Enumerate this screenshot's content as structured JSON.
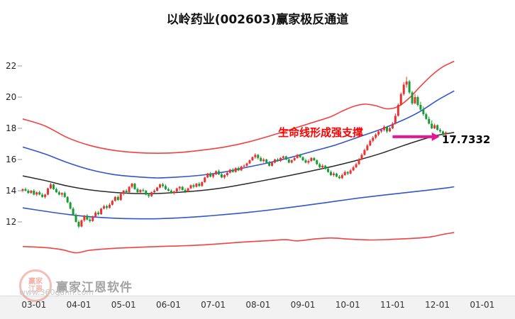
{
  "title": "以岭药业(002603)赢家极反通道",
  "watermark": {
    "brand": "赢家江恩软件",
    "url": "www.360gann.com",
    "seal_line1": "赢家",
    "seal_line2": "江恩"
  },
  "chart_data": {
    "type": "candlestick",
    "title": "以岭药业(002603)赢家极反通道",
    "ylim": [
      10,
      23
    ],
    "grid": false,
    "y_ticks": [
      22,
      20,
      18,
      16,
      14,
      12
    ],
    "x_ticks": [
      "03-01",
      "04-01",
      "05-01",
      "06-01",
      "07-01",
      "08-01",
      "09-01",
      "10-01",
      "11-01",
      "12-01",
      "01-01"
    ],
    "x_tick_first_index": 4,
    "x_tick_step": 16,
    "colors": {
      "up": "#e83232",
      "down": "#169c33",
      "axis_text": "#222222",
      "x_text": "#333333"
    },
    "annotation": {
      "text": "生命线形成强支撑",
      "text_color": "#ff0000",
      "price_label": "17.7332",
      "price_value": 17.7332,
      "arrow_color": "#e61696",
      "arrow_from_index": 132,
      "arrow_to_index": 146
    },
    "candles": [
      [
        14.0,
        14.15,
        13.9,
        14.1
      ],
      [
        14.1,
        14.2,
        13.95,
        14.0
      ],
      [
        14.0,
        14.1,
        13.8,
        13.85
      ],
      [
        13.85,
        14.05,
        13.8,
        14.0
      ],
      [
        14.0,
        14.1,
        13.7,
        13.75
      ],
      [
        13.75,
        13.95,
        13.65,
        13.9
      ],
      [
        13.9,
        14.0,
        13.7,
        13.75
      ],
      [
        13.75,
        13.85,
        13.55,
        13.6
      ],
      [
        13.6,
        13.8,
        13.5,
        13.75
      ],
      [
        13.75,
        14.2,
        13.7,
        14.15
      ],
      [
        14.15,
        14.5,
        14.1,
        14.4
      ],
      [
        14.4,
        14.45,
        14.05,
        14.1
      ],
      [
        14.1,
        14.2,
        13.85,
        13.9
      ],
      [
        13.9,
        14.0,
        13.7,
        13.75
      ],
      [
        13.75,
        13.9,
        13.6,
        13.85
      ],
      [
        13.85,
        13.95,
        13.55,
        13.6
      ],
      [
        13.6,
        13.65,
        13.2,
        13.25
      ],
      [
        13.25,
        13.3,
        12.8,
        12.85
      ],
      [
        12.85,
        12.95,
        12.4,
        12.45
      ],
      [
        12.45,
        12.55,
        11.95,
        12.0
      ],
      [
        12.0,
        12.1,
        11.6,
        11.7
      ],
      [
        11.7,
        12.15,
        11.65,
        12.1
      ],
      [
        12.1,
        12.45,
        12.0,
        12.4
      ],
      [
        12.4,
        12.5,
        12.1,
        12.15
      ],
      [
        12.15,
        12.3,
        11.95,
        12.05
      ],
      [
        12.05,
        12.4,
        12.0,
        12.35
      ],
      [
        12.35,
        12.7,
        12.3,
        12.6
      ],
      [
        12.6,
        12.7,
        12.4,
        12.5
      ],
      [
        12.5,
        12.9,
        12.45,
        12.85
      ],
      [
        12.85,
        13.1,
        12.8,
        13.0
      ],
      [
        13.0,
        13.1,
        12.8,
        12.9
      ],
      [
        12.9,
        13.2,
        12.85,
        13.1
      ],
      [
        13.1,
        13.4,
        13.05,
        13.35
      ],
      [
        13.35,
        13.65,
        13.3,
        13.6
      ],
      [
        13.6,
        13.7,
        13.35,
        13.4
      ],
      [
        13.4,
        13.85,
        13.35,
        13.8
      ],
      [
        13.8,
        14.05,
        13.7,
        14.0
      ],
      [
        14.0,
        14.1,
        13.8,
        13.9
      ],
      [
        13.9,
        14.3,
        13.85,
        14.25
      ],
      [
        14.25,
        14.5,
        14.15,
        14.45
      ],
      [
        14.45,
        14.5,
        14.05,
        14.1
      ],
      [
        14.1,
        14.2,
        13.85,
        13.9
      ],
      [
        13.9,
        14.1,
        13.8,
        14.05
      ],
      [
        14.05,
        14.15,
        13.9,
        14.0
      ],
      [
        14.0,
        14.05,
        13.7,
        13.75
      ],
      [
        13.75,
        13.85,
        13.55,
        13.65
      ],
      [
        13.65,
        13.95,
        13.6,
        13.9
      ],
      [
        13.9,
        14.1,
        13.85,
        14.0
      ],
      [
        14.0,
        14.25,
        13.95,
        14.2
      ],
      [
        14.2,
        14.45,
        14.15,
        14.4
      ],
      [
        14.4,
        14.5,
        14.2,
        14.3
      ],
      [
        14.3,
        14.4,
        14.05,
        14.1
      ],
      [
        14.1,
        14.2,
        13.95,
        14.0
      ],
      [
        14.0,
        14.1,
        13.8,
        13.85
      ],
      [
        13.85,
        14.0,
        13.75,
        13.95
      ],
      [
        13.95,
        14.2,
        13.9,
        14.15
      ],
      [
        14.15,
        14.3,
        14.0,
        14.25
      ],
      [
        14.25,
        14.3,
        14.0,
        14.05
      ],
      [
        14.05,
        14.15,
        13.85,
        13.95
      ],
      [
        13.95,
        14.2,
        13.9,
        14.15
      ],
      [
        14.15,
        14.4,
        14.1,
        14.35
      ],
      [
        14.35,
        14.45,
        14.15,
        14.25
      ],
      [
        14.25,
        14.5,
        14.2,
        14.45
      ],
      [
        14.45,
        14.55,
        14.25,
        14.3
      ],
      [
        14.3,
        14.6,
        14.25,
        14.55
      ],
      [
        14.55,
        14.9,
        14.5,
        14.85
      ],
      [
        14.85,
        15.15,
        14.8,
        15.1
      ],
      [
        15.1,
        15.2,
        14.85,
        14.9
      ],
      [
        14.9,
        15.1,
        14.8,
        15.05
      ],
      [
        15.05,
        15.3,
        15.0,
        15.25
      ],
      [
        15.25,
        15.35,
        15.0,
        15.05
      ],
      [
        15.05,
        15.15,
        14.8,
        14.85
      ],
      [
        14.85,
        15.05,
        14.75,
        15.0
      ],
      [
        15.0,
        15.2,
        14.9,
        15.15
      ],
      [
        15.15,
        15.4,
        15.1,
        15.35
      ],
      [
        15.35,
        15.45,
        15.15,
        15.2
      ],
      [
        15.2,
        15.5,
        15.15,
        15.45
      ],
      [
        15.45,
        15.55,
        15.25,
        15.3
      ],
      [
        15.3,
        15.6,
        15.25,
        15.55
      ],
      [
        15.55,
        15.7,
        15.45,
        15.6
      ],
      [
        15.6,
        15.8,
        15.5,
        15.75
      ],
      [
        15.75,
        16.0,
        15.7,
        15.95
      ],
      [
        15.95,
        16.2,
        15.9,
        16.15
      ],
      [
        16.15,
        16.4,
        16.05,
        16.3
      ],
      [
        16.3,
        16.35,
        16.0,
        16.1
      ],
      [
        16.1,
        16.2,
        15.85,
        15.9
      ],
      [
        15.9,
        16.1,
        15.8,
        16.0
      ],
      [
        16.0,
        16.05,
        15.75,
        15.8
      ],
      [
        15.8,
        15.9,
        15.55,
        15.6
      ],
      [
        15.6,
        15.85,
        15.55,
        15.8
      ],
      [
        15.8,
        16.05,
        15.75,
        16.0
      ],
      [
        16.0,
        16.1,
        15.85,
        15.9
      ],
      [
        15.9,
        16.15,
        15.85,
        16.1
      ],
      [
        16.1,
        16.25,
        16.0,
        16.2
      ],
      [
        16.2,
        16.25,
        15.95,
        16.0
      ],
      [
        16.0,
        16.05,
        15.75,
        15.8
      ],
      [
        15.8,
        16.0,
        15.75,
        15.95
      ],
      [
        15.95,
        16.15,
        15.9,
        16.1
      ],
      [
        16.1,
        16.35,
        16.05,
        16.3
      ],
      [
        16.3,
        16.35,
        16.1,
        16.15
      ],
      [
        16.15,
        16.2,
        15.9,
        15.95
      ],
      [
        15.95,
        16.05,
        15.75,
        15.8
      ],
      [
        15.8,
        16.0,
        15.7,
        15.9
      ],
      [
        15.9,
        16.15,
        15.85,
        16.1
      ],
      [
        16.1,
        16.15,
        15.9,
        15.95
      ],
      [
        15.95,
        16.0,
        15.65,
        15.7
      ],
      [
        15.7,
        15.8,
        15.45,
        15.5
      ],
      [
        15.5,
        15.7,
        15.4,
        15.6
      ],
      [
        15.6,
        15.65,
        15.35,
        15.4
      ],
      [
        15.4,
        15.5,
        15.15,
        15.2
      ],
      [
        15.2,
        15.3,
        14.95,
        15.0
      ],
      [
        15.0,
        15.2,
        14.9,
        15.1
      ],
      [
        15.1,
        15.15,
        14.85,
        14.9
      ],
      [
        14.9,
        15.0,
        14.75,
        14.8
      ],
      [
        14.8,
        15.1,
        14.75,
        15.0
      ],
      [
        15.0,
        15.3,
        14.95,
        15.2
      ],
      [
        15.2,
        15.25,
        15.0,
        15.1
      ],
      [
        15.1,
        15.4,
        15.05,
        15.3
      ],
      [
        15.3,
        15.6,
        15.25,
        15.5
      ],
      [
        15.5,
        15.8,
        15.45,
        15.7
      ],
      [
        15.7,
        16.1,
        15.65,
        16.0
      ],
      [
        16.0,
        16.4,
        15.95,
        16.3
      ],
      [
        16.3,
        16.7,
        16.25,
        16.6
      ],
      [
        16.6,
        17.0,
        16.55,
        16.9
      ],
      [
        16.9,
        17.3,
        16.85,
        17.2
      ],
      [
        17.2,
        17.5,
        17.1,
        17.4
      ],
      [
        17.4,
        17.7,
        17.3,
        17.6
      ],
      [
        17.6,
        17.9,
        17.5,
        17.8
      ],
      [
        17.8,
        18.0,
        17.7,
        17.9
      ],
      [
        17.9,
        18.2,
        17.8,
        18.1
      ],
      [
        18.1,
        18.15,
        17.7,
        17.8
      ],
      [
        17.8,
        18.1,
        17.75,
        18.0
      ],
      [
        18.0,
        18.4,
        17.95,
        18.3
      ],
      [
        18.3,
        18.95,
        18.25,
        18.8
      ],
      [
        18.8,
        19.6,
        18.75,
        19.5
      ],
      [
        19.5,
        20.3,
        19.45,
        20.2
      ],
      [
        20.2,
        20.95,
        20.1,
        20.8
      ],
      [
        20.8,
        21.3,
        20.6,
        21.0
      ],
      [
        21.0,
        21.1,
        20.2,
        20.3
      ],
      [
        20.3,
        20.4,
        19.5,
        19.6
      ],
      [
        19.6,
        20.2,
        19.55,
        20.0
      ],
      [
        20.0,
        20.1,
        19.4,
        19.5
      ],
      [
        19.5,
        19.7,
        19.1,
        19.2
      ],
      [
        19.2,
        19.4,
        18.8,
        18.9
      ],
      [
        18.9,
        19.0,
        18.55,
        18.6
      ],
      [
        18.6,
        18.75,
        18.25,
        18.3
      ],
      [
        18.3,
        18.5,
        17.95,
        18.0
      ],
      [
        18.0,
        18.3,
        17.95,
        18.2
      ],
      [
        18.2,
        18.25,
        17.85,
        17.9
      ],
      [
        17.9,
        18.0,
        17.7,
        17.8
      ],
      [
        17.8,
        17.85,
        17.5,
        17.6
      ],
      [
        17.6,
        17.8,
        17.55,
        17.73
      ]
    ],
    "lines": [
      {
        "name": "upper-red-channel",
        "color": "#f54040",
        "width": 1.6,
        "points": [
          [
            0,
            18.6
          ],
          [
            8,
            18.15
          ],
          [
            16,
            17.4
          ],
          [
            24,
            16.9
          ],
          [
            32,
            16.6
          ],
          [
            40,
            16.45
          ],
          [
            48,
            16.4
          ],
          [
            56,
            16.45
          ],
          [
            64,
            16.6
          ],
          [
            72,
            16.8
          ],
          [
            80,
            17.1
          ],
          [
            88,
            17.5
          ],
          [
            96,
            17.95
          ],
          [
            104,
            18.4
          ],
          [
            110,
            18.75
          ],
          [
            114,
            19.1
          ],
          [
            118,
            19.4
          ],
          [
            122,
            19.55
          ],
          [
            126,
            19.45
          ],
          [
            130,
            19.25
          ],
          [
            134,
            19.4
          ],
          [
            138,
            19.95
          ],
          [
            142,
            20.7
          ],
          [
            146,
            21.4
          ],
          [
            150,
            21.95
          ],
          [
            154,
            22.3
          ]
        ]
      },
      {
        "name": "upper-blue-channel",
        "color": "#3355cc",
        "width": 1.6,
        "points": [
          [
            0,
            16.8
          ],
          [
            8,
            16.35
          ],
          [
            16,
            15.8
          ],
          [
            24,
            15.35
          ],
          [
            32,
            15.05
          ],
          [
            40,
            14.9
          ],
          [
            48,
            14.82
          ],
          [
            56,
            14.88
          ],
          [
            64,
            15.0
          ],
          [
            72,
            15.2
          ],
          [
            80,
            15.5
          ],
          [
            88,
            15.8
          ],
          [
            96,
            16.15
          ],
          [
            104,
            16.55
          ],
          [
            112,
            16.95
          ],
          [
            120,
            17.45
          ],
          [
            128,
            17.95
          ],
          [
            136,
            18.55
          ],
          [
            142,
            19.1
          ],
          [
            148,
            19.8
          ],
          [
            154,
            20.4
          ]
        ]
      },
      {
        "name": "life-line-black",
        "color": "#2a2a2a",
        "width": 1.5,
        "points": [
          [
            0,
            14.95
          ],
          [
            8,
            14.65
          ],
          [
            16,
            14.3
          ],
          [
            24,
            14.05
          ],
          [
            32,
            13.9
          ],
          [
            40,
            13.82
          ],
          [
            48,
            13.82
          ],
          [
            56,
            13.9
          ],
          [
            64,
            14.02
          ],
          [
            72,
            14.2
          ],
          [
            80,
            14.45
          ],
          [
            88,
            14.72
          ],
          [
            96,
            15.0
          ],
          [
            104,
            15.3
          ],
          [
            112,
            15.62
          ],
          [
            120,
            15.98
          ],
          [
            128,
            16.4
          ],
          [
            136,
            16.9
          ],
          [
            142,
            17.25
          ],
          [
            148,
            17.55
          ],
          [
            154,
            17.73
          ]
        ]
      },
      {
        "name": "lower-blue-channel",
        "color": "#3355cc",
        "width": 1.6,
        "points": [
          [
            0,
            12.9
          ],
          [
            8,
            12.68
          ],
          [
            16,
            12.48
          ],
          [
            24,
            12.33
          ],
          [
            32,
            12.24
          ],
          [
            40,
            12.2
          ],
          [
            48,
            12.2
          ],
          [
            56,
            12.26
          ],
          [
            64,
            12.35
          ],
          [
            72,
            12.47
          ],
          [
            80,
            12.6
          ],
          [
            88,
            12.76
          ],
          [
            96,
            12.94
          ],
          [
            104,
            13.13
          ],
          [
            112,
            13.33
          ],
          [
            120,
            13.53
          ],
          [
            128,
            13.7
          ],
          [
            136,
            13.86
          ],
          [
            144,
            14.02
          ],
          [
            150,
            14.15
          ],
          [
            154,
            14.25
          ]
        ]
      },
      {
        "name": "lower-red-channel",
        "color": "#f54040",
        "width": 1.6,
        "points": [
          [
            0,
            10.42
          ],
          [
            8,
            10.35
          ],
          [
            14,
            10.22
          ],
          [
            19,
            10.02
          ],
          [
            24,
            10.18
          ],
          [
            32,
            10.3
          ],
          [
            40,
            10.36
          ],
          [
            48,
            10.42
          ],
          [
            56,
            10.46
          ],
          [
            64,
            10.52
          ],
          [
            72,
            10.62
          ],
          [
            80,
            10.72
          ],
          [
            88,
            10.8
          ],
          [
            94,
            10.86
          ],
          [
            98,
            10.78
          ],
          [
            104,
            10.9
          ],
          [
            110,
            10.97
          ],
          [
            116,
            10.9
          ],
          [
            124,
            10.84
          ],
          [
            132,
            10.88
          ],
          [
            140,
            10.95
          ],
          [
            146,
            11.05
          ],
          [
            150,
            11.2
          ],
          [
            154,
            11.32
          ]
        ]
      }
    ]
  }
}
